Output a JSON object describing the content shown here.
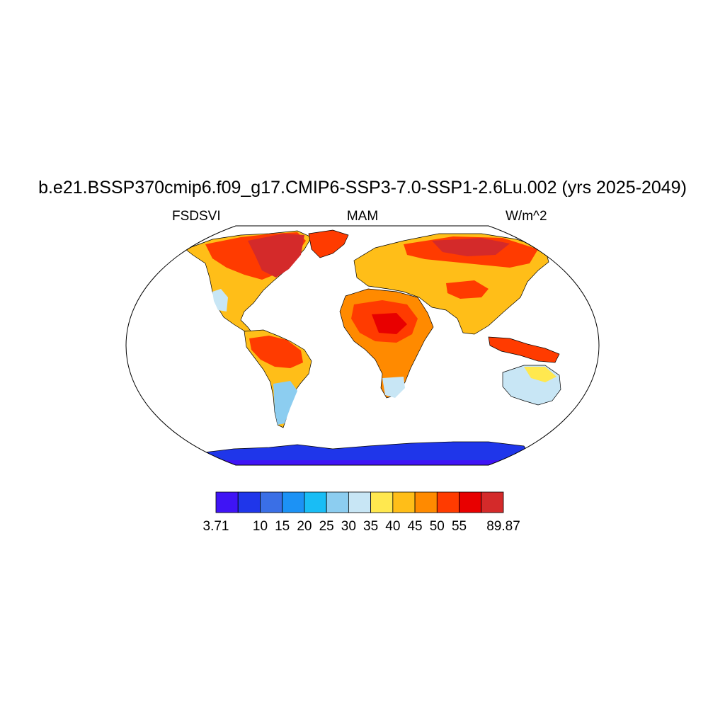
{
  "title": "b.e21.BSSP370cmip6.f09_g17.CMIP6-SSP3-7.0-SSP1-2.6Lu.002 (yrs 2025-2049)",
  "left_label": "FSDSVI",
  "center_label": "MAM",
  "right_label": "W/m^2",
  "colorbar": {
    "colors": [
      "#3f14f5",
      "#1f36ea",
      "#3a6fe6",
      "#1c92f5",
      "#19bdf5",
      "#8ccdf0",
      "#c8e6f5",
      "#ffe84f",
      "#ffbe18",
      "#ff8a00",
      "#ff3b00",
      "#e80000",
      "#d42a2a"
    ],
    "labels": [
      "3.71",
      "10",
      "15",
      "20",
      "25",
      "30",
      "35",
      "40",
      "45",
      "50",
      "55",
      "89.87"
    ]
  },
  "legend_colors": {
    "ocean": "#ffffff",
    "frame": "#000000"
  }
}
